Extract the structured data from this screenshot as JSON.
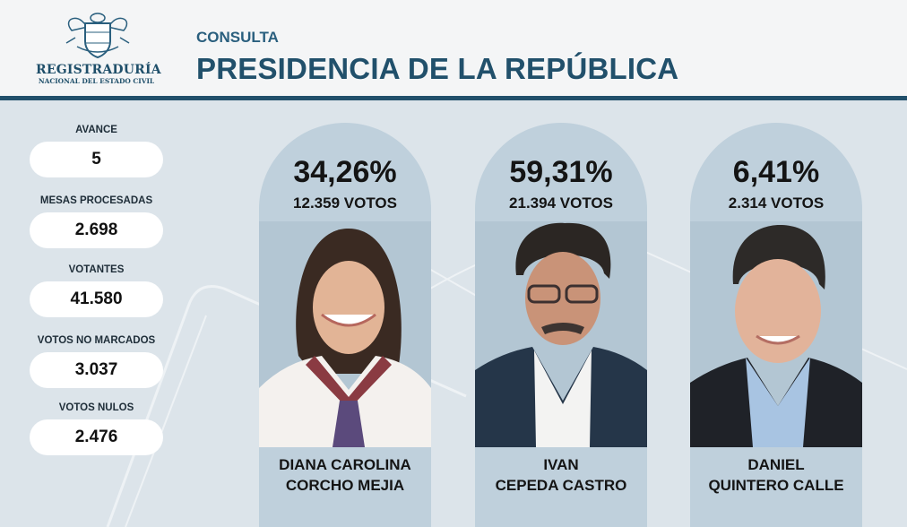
{
  "header": {
    "logo": {
      "name": "REGISTRADURÍA",
      "subtitle": "NACIONAL DEL ESTADO CIVIL"
    },
    "kicker": "CONSULTA",
    "title": "PRESIDENCIA DE LA REPÚBLICA"
  },
  "stats": [
    {
      "label": "AVANCE",
      "value": "5"
    },
    {
      "label": "MESAS PROCESADAS",
      "value": "2.698"
    },
    {
      "label": "VOTANTES",
      "value": "41.580"
    },
    {
      "label": "VOTOS NO MARCADOS",
      "value": "3.037"
    },
    {
      "label": "VOTOS NULOS",
      "value": "2.476"
    }
  ],
  "candidates": [
    {
      "percent": "34,26%",
      "votes": "12.359 VOTOS",
      "name_line1": "DIANA CAROLINA",
      "name_line2": "CORCHO MEJIA"
    },
    {
      "percent": "59,31%",
      "votes": "21.394 VOTOS",
      "name_line1": "IVAN",
      "name_line2": "CEPEDA CASTRO"
    },
    {
      "percent": "6,41%",
      "votes": "2.314 VOTOS",
      "name_line1": "DANIEL",
      "name_line2": "QUINTERO CALLE"
    }
  ],
  "colors": {
    "brand": "#21506b",
    "background": "#dce4ea",
    "card": "#bfd0dc"
  }
}
